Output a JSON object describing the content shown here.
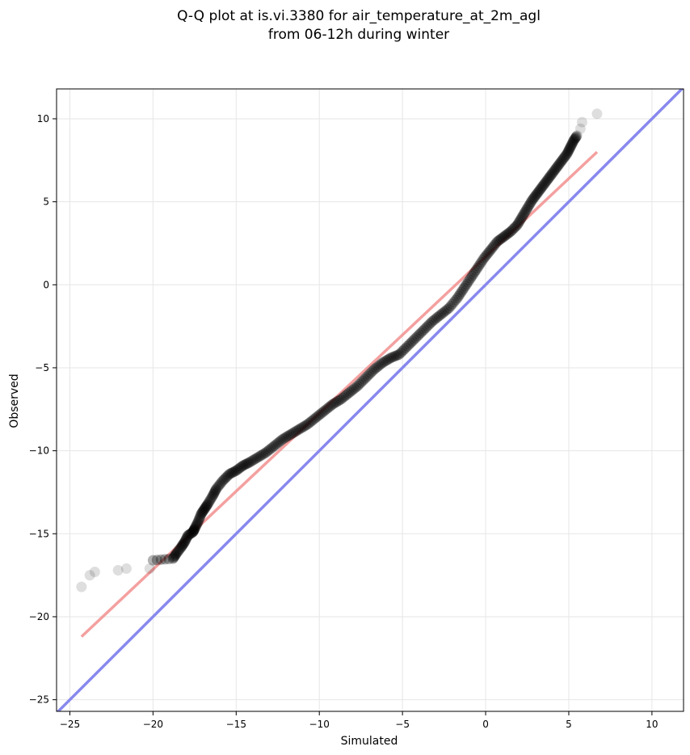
{
  "chart_data": {
    "type": "scatter",
    "title_line1": "Q-Q plot at is.vi.3380 for air_temperature_at_2m_agl",
    "title_line2": "from 06-12h during winter",
    "xlabel": "Simulated",
    "ylabel": "Observed",
    "xlim": [
      -25.8,
      11.9
    ],
    "ylim": [
      -25.7,
      11.8
    ],
    "x_ticks": [
      -25,
      -20,
      -15,
      -10,
      -5,
      0,
      5,
      10
    ],
    "y_ticks": [
      -25,
      -20,
      -15,
      -10,
      -5,
      0,
      5,
      10
    ],
    "x_tick_labels": [
      "−25",
      "−20",
      "−15",
      "−10",
      "−5",
      "0",
      "5",
      "10"
    ],
    "y_tick_labels": [
      "−25",
      "−20",
      "−15",
      "−10",
      "−5",
      "0",
      "5",
      "10"
    ],
    "grid": true,
    "colors": {
      "points": "#000000",
      "fit_line": "#f08080",
      "identity_line": "#8888ee"
    },
    "fit_line": {
      "x": [
        -24.3,
        6.7
      ],
      "y": [
        -21.2,
        8.0
      ]
    },
    "identity_line": {
      "x": [
        -25.8,
        11.9
      ],
      "y": [
        -25.8,
        11.9
      ]
    },
    "quantiles": {
      "x": [
        -24.3,
        -23.8,
        -23.5,
        -22.1,
        -21.6,
        -20.2,
        -20.0,
        -18.8,
        -18.6,
        -18.3,
        -18.1,
        -17.9,
        -17.6,
        -17.5,
        -17.3,
        -17.1,
        -16.9,
        -16.7,
        -16.4,
        -16.2,
        -15.8,
        -15.4,
        -15.0,
        -14.6,
        -14.2,
        -13.7,
        -13.2,
        -12.7,
        -12.2,
        -11.7,
        -11.2,
        -10.7,
        -10.2,
        -9.7,
        -9.2,
        -8.7,
        -8.2,
        -7.7,
        -7.2,
        -6.7,
        -6.2,
        -5.7,
        -5.2,
        -4.7,
        -4.2,
        -3.7,
        -3.2,
        -2.7,
        -2.2,
        -1.7,
        -1.3,
        -0.9,
        -0.5,
        -0.1,
        0.3,
        0.7,
        1.1,
        1.5,
        1.9,
        2.2,
        2.5,
        2.8,
        3.1,
        3.4,
        3.7,
        4.0,
        4.3,
        4.6,
        4.9,
        5.1,
        5.3,
        5.5,
        5.7,
        5.8,
        6.7
      ],
      "y": [
        -18.2,
        -17.5,
        -17.3,
        -17.2,
        -17.1,
        -17.1,
        -16.6,
        -16.5,
        -16.2,
        -15.8,
        -15.5,
        -15.1,
        -14.9,
        -14.7,
        -14.3,
        -13.8,
        -13.5,
        -13.2,
        -12.7,
        -12.3,
        -11.8,
        -11.4,
        -11.2,
        -10.9,
        -10.7,
        -10.4,
        -10.1,
        -9.7,
        -9.3,
        -9.0,
        -8.7,
        -8.4,
        -8.0,
        -7.6,
        -7.2,
        -6.9,
        -6.5,
        -6.1,
        -5.6,
        -5.1,
        -4.7,
        -4.4,
        -4.2,
        -3.7,
        -3.2,
        -2.7,
        -2.2,
        -1.8,
        -1.4,
        -0.8,
        -0.2,
        0.4,
        1.0,
        1.6,
        2.1,
        2.6,
        2.9,
        3.2,
        3.6,
        4.1,
        4.6,
        5.1,
        5.5,
        5.9,
        6.3,
        6.7,
        7.1,
        7.5,
        7.9,
        8.3,
        8.7,
        9.0,
        9.4,
        9.8,
        10.3
      ]
    }
  }
}
